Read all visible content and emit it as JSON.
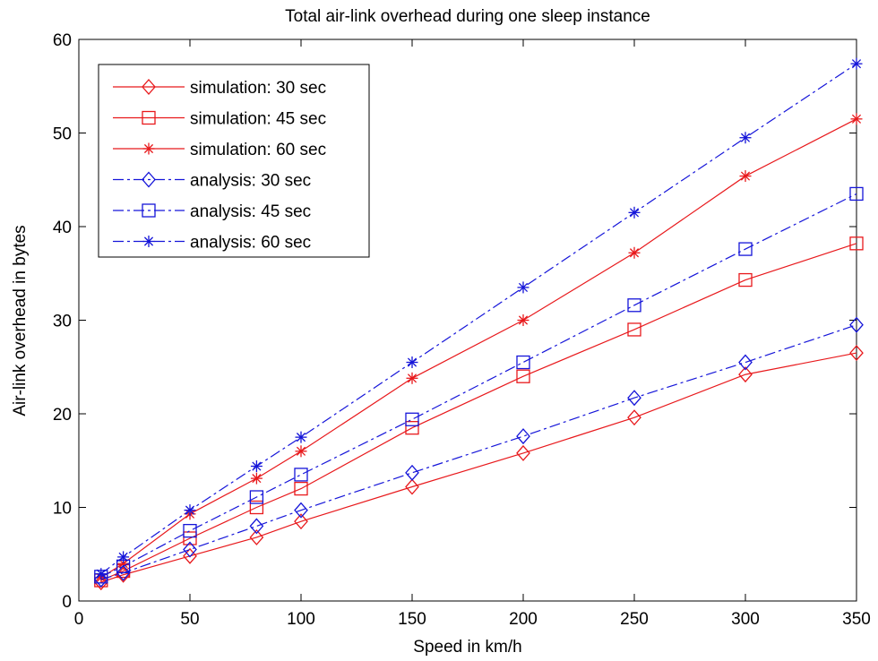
{
  "chart_data": {
    "type": "line",
    "title": "Total air-link overhead during one sleep instance",
    "xlabel": "Speed in km/h",
    "ylabel": "Air-link overhead in bytes",
    "xlim": [
      0,
      350
    ],
    "ylim": [
      0,
      60
    ],
    "xticks": [
      0,
      50,
      100,
      150,
      200,
      250,
      300,
      350
    ],
    "yticks": [
      0,
      10,
      20,
      30,
      40,
      50,
      60
    ],
    "grid": false,
    "legend_position": "top-left",
    "x": [
      10,
      20,
      50,
      80,
      100,
      150,
      200,
      250,
      300,
      350
    ],
    "series": [
      {
        "name": "simulation: 30 sec",
        "color": "#e8191c",
        "marker": "diamond",
        "dash": "solid",
        "values": [
          2.0,
          2.8,
          4.8,
          6.8,
          8.5,
          12.2,
          15.8,
          19.6,
          24.2,
          26.5
        ]
      },
      {
        "name": "simulation: 45 sec",
        "color": "#e8191c",
        "marker": "square",
        "dash": "solid",
        "values": [
          2.2,
          3.2,
          6.7,
          10.0,
          12.0,
          18.5,
          24.0,
          29.0,
          34.3,
          38.2
        ]
      },
      {
        "name": "simulation: 60 sec",
        "color": "#e8191c",
        "marker": "star",
        "dash": "solid",
        "values": [
          2.5,
          4.0,
          9.3,
          13.1,
          16.0,
          23.8,
          30.0,
          37.2,
          45.4,
          51.5
        ]
      },
      {
        "name": "analysis: 30 sec",
        "color": "#1515d9",
        "marker": "diamond",
        "dash": "dashdot",
        "values": [
          2.3,
          3.0,
          5.5,
          8.0,
          9.7,
          13.7,
          17.6,
          21.7,
          25.5,
          29.5
        ]
      },
      {
        "name": "analysis: 45 sec",
        "color": "#1515d9",
        "marker": "square",
        "dash": "dashdot",
        "values": [
          2.6,
          3.7,
          7.5,
          11.1,
          13.5,
          19.4,
          25.5,
          31.6,
          37.6,
          43.5
        ]
      },
      {
        "name": "analysis: 60 sec",
        "color": "#1515d9",
        "marker": "star",
        "dash": "dashdot",
        "values": [
          2.9,
          4.7,
          9.7,
          14.4,
          17.5,
          25.5,
          33.5,
          41.5,
          49.5,
          57.4
        ]
      }
    ]
  }
}
